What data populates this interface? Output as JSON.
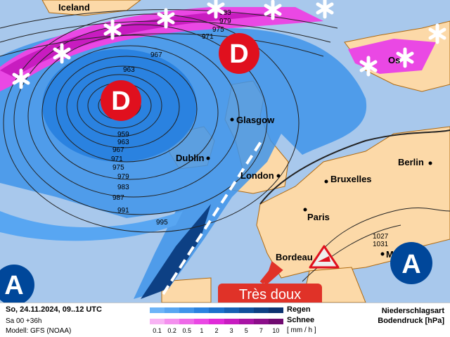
{
  "map": {
    "cities": {
      "iceland": "Iceland",
      "glasgow": "Glasgow",
      "dublin": "Dublin",
      "london": "London",
      "bruxelles": "Bruxelles",
      "berlin": "Berlin",
      "paris": "Paris",
      "bordeaux": "Bordeau",
      "oslo": "Os",
      "marseille": "M"
    },
    "isobars": [
      "983",
      "979",
      "975",
      "971",
      "967",
      "963",
      "959",
      "959",
      "963",
      "967",
      "971",
      "975",
      "979",
      "983",
      "987",
      "991",
      "995",
      "1027",
      "1031"
    ],
    "pressure_centers": [
      {
        "type": "low",
        "label": "D"
      },
      {
        "type": "low",
        "label": "D"
      },
      {
        "type": "high",
        "label": "A"
      },
      {
        "type": "high",
        "label": "A"
      }
    ],
    "warning_icon": "wind-warning-icon",
    "badge": "Très doux",
    "colors": {
      "low": "#e0101e",
      "high": "#00479a",
      "sea": "#a8c8ec",
      "land": "#fcd9a8",
      "badge": "#e03228"
    }
  },
  "legend": {
    "date": "So, 24.11.2024, 09..12 UTC",
    "run": "Sa 00 +36h",
    "model": "Modell: GFS (NOAA)",
    "rain_label": "Regen",
    "snow_label": "Schnee",
    "unit": "[ mm / h ]",
    "ticks": [
      "0.1",
      "0.2",
      "0.5",
      "1",
      "2",
      "3",
      "5",
      "7",
      "10"
    ],
    "rain_colors": [
      "#6cb4f8",
      "#58a6f2",
      "#3f94ea",
      "#2a82e0",
      "#1c70cc",
      "#1660b4",
      "#10509c",
      "#0d4084",
      "#0c3270"
    ],
    "snow_colors": [
      "#f8b4f4",
      "#f490ee",
      "#ee6ae8",
      "#ea48e4",
      "#e02ad8",
      "#c81cc0",
      "#a814a4",
      "#8c0e8a",
      "#700a70"
    ],
    "title1": "Niederschlagsart",
    "title2": "Bodendruck [hPa]"
  }
}
